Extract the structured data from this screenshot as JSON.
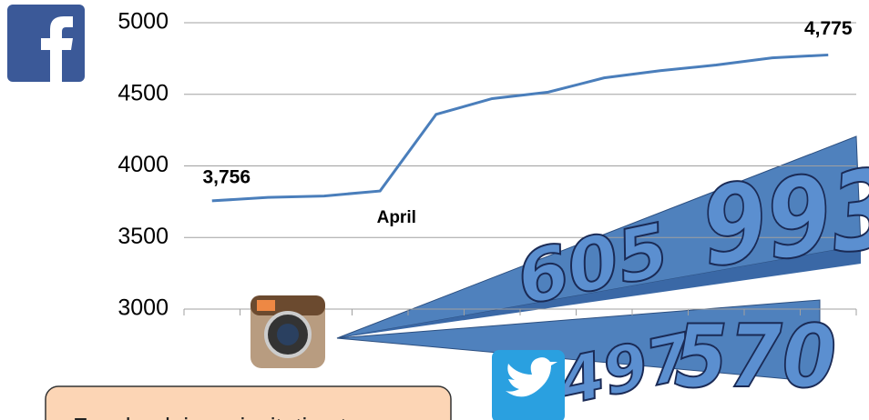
{
  "chart_data": {
    "type": "line",
    "categories": [
      null,
      null,
      null,
      "April",
      null,
      null,
      null,
      null,
      null,
      null,
      null,
      null
    ],
    "series": [
      {
        "name": null,
        "color": "#4a7ebb",
        "values": [
          3756,
          3780,
          3790,
          3825,
          4360,
          4470,
          4515,
          4615,
          4665,
          4705,
          4755,
          4775
        ],
        "value_labels": [
          "3,756",
          null,
          null,
          null,
          null,
          null,
          null,
          null,
          null,
          null,
          null,
          "4,775"
        ]
      }
    ],
    "ylim": [
      3000,
      5000
    ],
    "yticks": [
      3000,
      3500,
      4000,
      4500,
      5000
    ],
    "grid": true
  },
  "overlay": {
    "instagram": [
      "605",
      "993"
    ],
    "twitter": [
      "497",
      "570"
    ],
    "callout": "Facebook is an invitation to"
  }
}
